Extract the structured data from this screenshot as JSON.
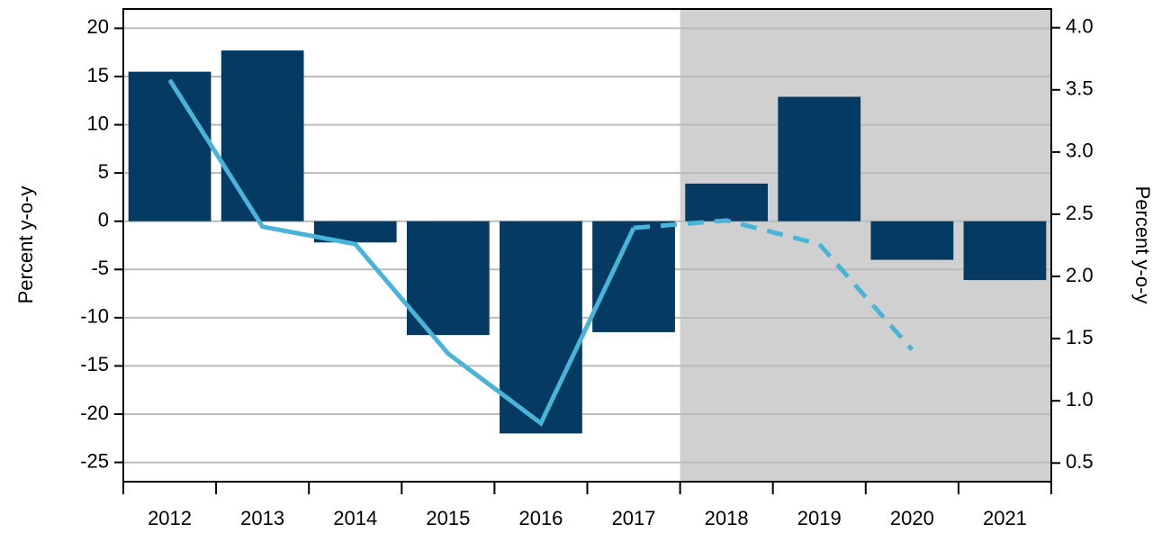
{
  "chart_data": {
    "type": "bar",
    "categories": [
      "2012",
      "2013",
      "2014",
      "2015",
      "2016",
      "2017",
      "2018",
      "2019",
      "2020",
      "2021"
    ],
    "values": [
      15.5,
      17.7,
      -2.2,
      -11.8,
      -22,
      -11.5,
      3.9,
      12.9,
      -4,
      -6.1
    ],
    "color": "#053a63",
    "series": [
      {
        "type": "line",
        "axis": "y2",
        "color": "#4ab3d8",
        "dash": false,
        "values": [
          3.58,
          2.4,
          2.26,
          1.38,
          0.82,
          2.39,
          null,
          null,
          null,
          null
        ]
      },
      {
        "type": "line",
        "axis": "y2",
        "color": "#4ab3d8",
        "dash": true,
        "values": [
          null,
          null,
          null,
          null,
          null,
          2.39,
          2.45,
          2.26,
          1.41,
          null
        ]
      }
    ],
    "ylabel": "Percent y-o-y",
    "y2label": "Percent y-o-y",
    "ylim": [
      -27,
      22
    ],
    "yticks": [
      -25,
      -20,
      -15,
      -10,
      -5,
      0,
      5,
      10,
      15,
      20
    ],
    "y2lim": [
      0.35,
      4.15
    ],
    "y2ticks": [
      0.5,
      {
        "value": 1,
        "label": "1.0"
      },
      1.5,
      {
        "value": 2,
        "label": "2.0"
      },
      2.5,
      {
        "value": 3,
        "label": "3.0"
      },
      3.5,
      {
        "value": 4,
        "label": "4.0"
      }
    ],
    "grid": true,
    "shade_from": "2018",
    "shade_color": "#d0d0d0"
  }
}
